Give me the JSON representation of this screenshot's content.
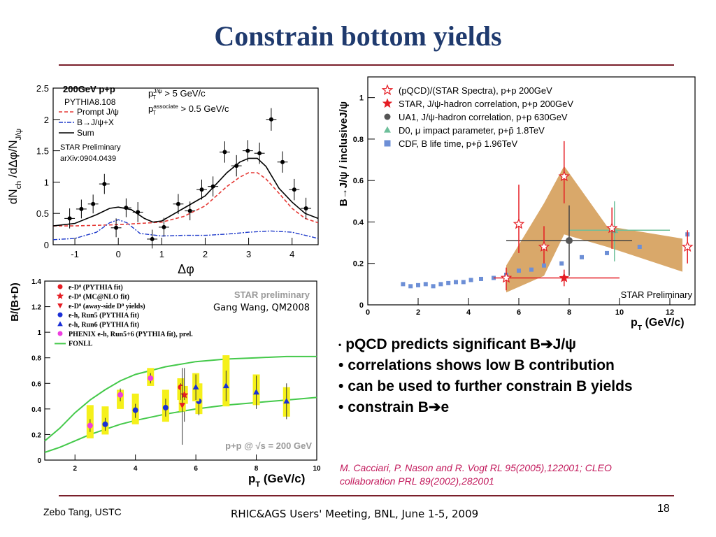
{
  "slide": {
    "title": "Constrain bottom yields",
    "footer_left": "Zebo Tang, USTC",
    "footer_center": "RHIC&AGS Users' Meeting, BNL, June 1-5, 2009",
    "page_number": "18",
    "bullets": [
      {
        "dot": "•",
        "text": "pQCD predicts significant B➔J/ψ"
      },
      {
        "dot": "•",
        "text": "correlations shows low B contribution"
      },
      {
        "dot": "•",
        "text": "can be used to further constrain B yields"
      },
      {
        "dot": "•",
        "text": "constrain B➔e"
      }
    ],
    "reference_line1": "M. Cacciari, P. Nason and R. Vogt RL 95(2005),122001; CLEO",
    "reference_line2": "collaboration PRL 89(2002),282001",
    "colors": {
      "title": "#1f3a6e",
      "rule": "#7a1f2b",
      "reference": "#c2185b",
      "band": "#d9a86a",
      "yellow": "#f5f01a"
    }
  },
  "chart_data": [
    {
      "type": "line",
      "title_label": "200GeV p+p",
      "generator_label": "PYTHIA8.108",
      "cut_label_1": "p_T^J/ψ > 5 GeV/c",
      "cut_label_1_main": "p",
      "cut_label_1_sup": "J/ψ",
      "cut_label_1_sub": "T",
      "cut_label_1_rest": " > 5 GeV/c",
      "cut_label_2_main": "p",
      "cut_label_2_sup": "associate",
      "cut_label_2_sub": "T",
      "cut_label_2_rest": " > 0.5 GeV/c",
      "prelim_label": "STAR Preliminary",
      "arxiv_label": "arXiv:0904.0439",
      "ylabel_main": "dN",
      "ylabel_sub": "ch",
      "ylabel_rest": " /dΔφ/N",
      "ylabel_sub2": "J/ψ",
      "xlabel": "Δφ",
      "xlim": [
        -1.5,
        4.6
      ],
      "ylim": [
        0,
        2.5
      ],
      "x_ticks": [
        -1,
        0,
        1,
        2,
        3,
        4
      ],
      "y_ticks": [
        0,
        0.5,
        1,
        1.5,
        2,
        2.5
      ],
      "y_tick_labels": [
        "0",
        "0.5",
        "1",
        "1.5",
        "2",
        "2.5"
      ],
      "x_tick_labels": [
        "-1",
        "0",
        "1",
        "2",
        "3",
        "4"
      ],
      "legend": [
        {
          "name": "Prompt J/ψ",
          "style": "dashed",
          "color": "#e53935"
        },
        {
          "name": "B→J/ψ+X",
          "style": "dashdot",
          "color": "#1e3aca"
        },
        {
          "name": "Sum",
          "style": "solid",
          "color": "#000000"
        }
      ],
      "points": [
        {
          "x": -1.12,
          "y": 0.42,
          "yerr": 0.16
        },
        {
          "x": -0.85,
          "y": 0.57,
          "yerr": 0.15
        },
        {
          "x": -0.58,
          "y": 0.65,
          "yerr": 0.15
        },
        {
          "x": -0.32,
          "y": 0.97,
          "yerr": 0.16
        },
        {
          "x": -0.05,
          "y": 0.27,
          "yerr": 0.15
        },
        {
          "x": 0.18,
          "y": 0.59,
          "yerr": 0.15
        },
        {
          "x": 0.45,
          "y": 0.52,
          "yerr": 0.16
        },
        {
          "x": 0.78,
          "y": 0.09,
          "yerr": 0.15
        },
        {
          "x": 1.05,
          "y": 0.28,
          "yerr": 0.15
        },
        {
          "x": 1.38,
          "y": 0.65,
          "yerr": 0.16
        },
        {
          "x": 1.65,
          "y": 0.54,
          "yerr": 0.15
        },
        {
          "x": 1.92,
          "y": 0.88,
          "yerr": 0.16
        },
        {
          "x": 2.18,
          "y": 0.93,
          "yerr": 0.16
        },
        {
          "x": 2.45,
          "y": 1.48,
          "yerr": 0.17
        },
        {
          "x": 2.72,
          "y": 1.26,
          "yerr": 0.17
        },
        {
          "x": 2.98,
          "y": 1.5,
          "yerr": 0.17
        },
        {
          "x": 3.25,
          "y": 1.46,
          "yerr": 0.17
        },
        {
          "x": 3.52,
          "y": 2.0,
          "yerr": 0.18
        },
        {
          "x": 3.78,
          "y": 1.32,
          "yerr": 0.17
        },
        {
          "x": 4.05,
          "y": 0.88,
          "yerr": 0.17
        },
        {
          "x": 4.32,
          "y": 0.58,
          "yerr": 0.17
        }
      ],
      "curves": {
        "prompt_x": [
          -1.5,
          -1.0,
          -0.5,
          0.0,
          0.5,
          1.0,
          1.5,
          2.0,
          2.5,
          2.8,
          3.0,
          3.2,
          3.4,
          3.7,
          4.0,
          4.3,
          4.6
        ],
        "prompt_y": [
          0.3,
          0.3,
          0.31,
          0.32,
          0.34,
          0.36,
          0.45,
          0.62,
          0.93,
          1.08,
          1.15,
          1.15,
          1.05,
          0.82,
          0.58,
          0.42,
          0.35
        ],
        "b_x": [
          -1.5,
          -1.0,
          -0.5,
          -0.2,
          0.0,
          0.2,
          0.5,
          1.0,
          1.5,
          2.0,
          2.5,
          3.0,
          3.5,
          4.0,
          4.6
        ],
        "b_y": [
          0.08,
          0.1,
          0.2,
          0.35,
          0.4,
          0.35,
          0.18,
          0.14,
          0.15,
          0.15,
          0.17,
          0.2,
          0.22,
          0.2,
          0.1
        ],
        "sum_x": [
          -1.5,
          -1.0,
          -0.5,
          -0.2,
          0.0,
          0.3,
          0.6,
          0.8,
          1.0,
          1.5,
          2.0,
          2.5,
          2.8,
          3.0,
          3.2,
          3.4,
          3.7,
          4.0,
          4.3,
          4.6
        ],
        "sum_y": [
          0.3,
          0.34,
          0.48,
          0.58,
          0.6,
          0.56,
          0.42,
          0.36,
          0.38,
          0.58,
          0.78,
          1.15,
          1.32,
          1.38,
          1.38,
          1.25,
          0.9,
          0.68,
          0.5,
          0.42
        ]
      }
    },
    {
      "type": "scatter",
      "ylabel": "B/(B+D)",
      "xlabel_main": "p",
      "xlabel_sub": "T",
      "xlabel_rest": " (GeV/c)",
      "prelim_label": "STAR preliminary",
      "author_label": "Gang Wang, QM2008",
      "energy_label": "p+p @ √s = 200 GeV",
      "xlim": [
        1,
        10
      ],
      "ylim": [
        0,
        1.4
      ],
      "x_ticks": [
        2,
        4,
        6,
        8,
        10
      ],
      "x_tick_labels": [
        "2",
        "4",
        "6",
        "8",
        "10"
      ],
      "y_ticks": [
        0,
        0.2,
        0.4,
        0.6,
        0.8,
        1.0,
        1.2,
        1.4
      ],
      "y_tick_labels": [
        "0",
        "0.2",
        "0.4",
        "0.6",
        "0.8",
        "1",
        "1.2",
        "1.4"
      ],
      "legend": [
        {
          "main": "e-D",
          "sup": "0",
          "rest": " (PYTHIA fit)",
          "color": "#e51c23",
          "shape": "circle"
        },
        {
          "main": "e-D",
          "sup": "0",
          "rest": " (MC@NLO fit)",
          "color": "#e51c23",
          "shape": "star"
        },
        {
          "main": "e-D",
          "sup": "0",
          "rest": " (away-side D",
          "sup2": "0",
          "rest2": " yields)",
          "color": "#e51c23",
          "shape": "triangle-down"
        },
        {
          "main": "e-h, Run5 (PYTHIA fit)",
          "color": "#1a2fd6",
          "shape": "circle"
        },
        {
          "main": "e-h, Run6 (PYTHIA fit)",
          "color": "#1a2fd6",
          "shape": "triangle"
        },
        {
          "main": "PHENIX e-h, Run5+6 (PYTHIA fit), prel.",
          "color": "#ee3ee0",
          "shape": "circle"
        },
        {
          "main": "FONLL",
          "color": "#44c94a",
          "shape": "line"
        }
      ],
      "series": [
        {
          "name": "e-D0 (PYTHIA fit)",
          "color": "#e51c23",
          "shape": "circle",
          "points": [
            {
              "x": 5.5,
              "y": 0.57,
              "elo": 0.45,
              "ehi": 0.6,
              "syslo": 0.47,
              "syshi": 0.64
            }
          ]
        },
        {
          "name": "e-D0 (MC@NLO fit)",
          "color": "#e51c23",
          "shape": "star",
          "points": [
            {
              "x": 5.62,
              "y": 0.51,
              "elo": 0.3,
              "ehi": 0.72,
              "syslo": 0.44,
              "syshi": 0.58
            }
          ]
        },
        {
          "name": "e-D0 (away-side D0 yields)",
          "color": "#e51c23",
          "shape": "triangle-down",
          "points": [
            {
              "x": 5.55,
              "y": 0.43,
              "elo": 0.12,
              "ehi": 0.72,
              "syslo": 0.38,
              "syshi": 0.47
            }
          ]
        },
        {
          "name": "e-h, Run5 (PYTHIA fit)",
          "color": "#1a2fd6",
          "shape": "circle",
          "points": [
            {
              "x": 3.0,
              "y": 0.28,
              "elo": 0.23,
              "ehi": 0.33,
              "syslo": 0.2,
              "syshi": 0.42
            },
            {
              "x": 4.0,
              "y": 0.39,
              "elo": 0.33,
              "ehi": 0.44,
              "syslo": 0.28,
              "syshi": 0.52
            },
            {
              "x": 5.0,
              "y": 0.41,
              "elo": 0.34,
              "ehi": 0.48,
              "syslo": 0.3,
              "syshi": 0.55
            },
            {
              "x": 6.1,
              "y": 0.46,
              "elo": 0.35,
              "ehi": 0.57,
              "syslo": 0.36,
              "syshi": 0.6
            }
          ]
        },
        {
          "name": "e-h, Run6 (PYTHIA fit)",
          "color": "#1a2fd6",
          "shape": "triangle",
          "points": [
            {
              "x": 6.0,
              "y": 0.57,
              "elo": 0.47,
              "ehi": 0.67,
              "syslo": 0.46,
              "syshi": 0.68
            },
            {
              "x": 7.0,
              "y": 0.58,
              "elo": 0.46,
              "ehi": 0.7,
              "syslo": 0.42,
              "syshi": 0.82
            },
            {
              "x": 8.0,
              "y": 0.53,
              "elo": 0.4,
              "ehi": 0.66,
              "syslo": 0.43,
              "syshi": 0.67
            },
            {
              "x": 9.0,
              "y": 0.46,
              "elo": 0.32,
              "ehi": 0.6,
              "syslo": 0.34,
              "syshi": 0.57
            }
          ]
        },
        {
          "name": "PHENIX e-h, Run5+6 (PYTHIA fit), prel.",
          "color": "#ee3ee0",
          "shape": "circle",
          "points": [
            {
              "x": 2.5,
              "y": 0.27,
              "elo": 0.22,
              "ehi": 0.32,
              "syslo": 0.17,
              "syshi": 0.43
            },
            {
              "x": 3.5,
              "y": 0.51,
              "elo": 0.46,
              "ehi": 0.56,
              "syslo": 0.4,
              "syshi": 0.55
            },
            {
              "x": 4.5,
              "y": 0.64,
              "elo": 0.6,
              "ehi": 0.68,
              "syslo": 0.58,
              "syshi": 0.72
            }
          ]
        }
      ],
      "fonll_upper_x": [
        1.0,
        1.5,
        2.0,
        2.5,
        3.0,
        3.5,
        4.0,
        5.0,
        6.0,
        7.0,
        8.0,
        9.0,
        10.0
      ],
      "fonll_upper_y": [
        0.15,
        0.25,
        0.37,
        0.47,
        0.55,
        0.62,
        0.67,
        0.73,
        0.77,
        0.79,
        0.8,
        0.81,
        0.81
      ],
      "fonll_lower_x": [
        1.0,
        1.5,
        2.0,
        2.5,
        3.0,
        3.5,
        4.0,
        5.0,
        6.0,
        7.0,
        8.0,
        9.0,
        10.0
      ],
      "fonll_lower_y": [
        0.06,
        0.1,
        0.15,
        0.2,
        0.24,
        0.28,
        0.31,
        0.36,
        0.4,
        0.43,
        0.45,
        0.47,
        0.49
      ]
    },
    {
      "type": "scatter",
      "ylabel": "B→J/ψ / inclusiveJ/ψ",
      "xlabel_main": "p",
      "xlabel_sub": "T",
      "xlabel_rest": " (GeV/c)",
      "prelim_label": "STAR Preliminary",
      "xlim": [
        0,
        13
      ],
      "ylim": [
        0,
        1.1
      ],
      "x_ticks": [
        0,
        2,
        4,
        6,
        8,
        10,
        12
      ],
      "x_tick_labels": [
        "0",
        "2",
        "4",
        "6",
        "8",
        "10",
        "12"
      ],
      "y_ticks": [
        0,
        0.2,
        0.4,
        0.6,
        0.8,
        1.0
      ],
      "y_tick_labels": [
        "0",
        "0.2",
        "0.4",
        "0.6",
        "0.8",
        "1"
      ],
      "legend": [
        {
          "text": "(pQCD)/(STAR Spectra), p+p 200GeV",
          "shape": "open-star",
          "color": "#e51c23"
        },
        {
          "text": "STAR, J/ψ-hadron correlation, p+p 200GeV",
          "shape": "star",
          "color": "#e51c23"
        },
        {
          "text": "UA1, J/ψ-hadron correlation, p+p 630GeV",
          "shape": "circle",
          "color": "#555555"
        },
        {
          "text": "D0, μ impact parameter, p+p̄ 1.8TeV",
          "shape": "triangle",
          "color": "#6dbf9a"
        },
        {
          "text": "CDF, B life time, p+p̄ 1.96TeV",
          "shape": "square",
          "color": "#6d8fd6"
        }
      ],
      "band_upper_x": [
        5.5,
        7.0,
        7.8,
        9.5,
        12.5
      ],
      "band_upper_y": [
        0.19,
        0.49,
        0.67,
        0.38,
        0.32
      ],
      "band_lower_x": [
        5.5,
        7.0,
        7.8,
        9.5,
        12.5
      ],
      "band_lower_y": [
        0.06,
        0.14,
        0.34,
        0.28,
        0.16
      ],
      "pqcd_points": [
        {
          "x": 5.5,
          "y": 0.13,
          "elo": 0.07,
          "ehi": 0.18
        },
        {
          "x": 6.0,
          "y": 0.39,
          "elo": 0.25,
          "ehi": 0.58
        },
        {
          "x": 7.0,
          "y": 0.28,
          "elo": 0.2,
          "ehi": 0.38
        },
        {
          "x": 7.8,
          "y": 0.62,
          "elo": 0.49,
          "ehi": 0.79
        },
        {
          "x": 9.7,
          "y": 0.37,
          "elo": 0.27,
          "ehi": 0.47
        },
        {
          "x": 12.7,
          "y": 0.28,
          "elo": 0.2,
          "ehi": 0.36
        }
      ],
      "star_corr": [
        {
          "x": 7.8,
          "y": 0.13,
          "xlo": 5.0,
          "xhi": 10.0,
          "elo": 0.09,
          "ehi": 0.17
        }
      ],
      "ua1": [
        {
          "x": 8.0,
          "y": 0.31,
          "xlo": 5.5,
          "xhi": 10.5,
          "elo": 0.14,
          "ehi": 0.48
        }
      ],
      "d0": [
        {
          "x": 9.8,
          "y": 0.36,
          "xlo": 8.0,
          "xhi": 12.0,
          "elo": 0.21,
          "ehi": 0.5
        }
      ],
      "cdf_x": [
        1.4,
        1.7,
        2.0,
        2.3,
        2.6,
        2.9,
        3.2,
        3.5,
        3.8,
        4.1,
        4.5,
        5.0,
        5.5,
        6.0,
        6.5,
        7.0,
        7.7,
        8.5,
        9.5,
        10.8,
        12.7
      ],
      "cdf_y": [
        0.1,
        0.09,
        0.095,
        0.1,
        0.09,
        0.1,
        0.105,
        0.11,
        0.11,
        0.12,
        0.125,
        0.13,
        0.145,
        0.165,
        0.17,
        0.19,
        0.2,
        0.23,
        0.25,
        0.28,
        0.34
      ]
    }
  ]
}
